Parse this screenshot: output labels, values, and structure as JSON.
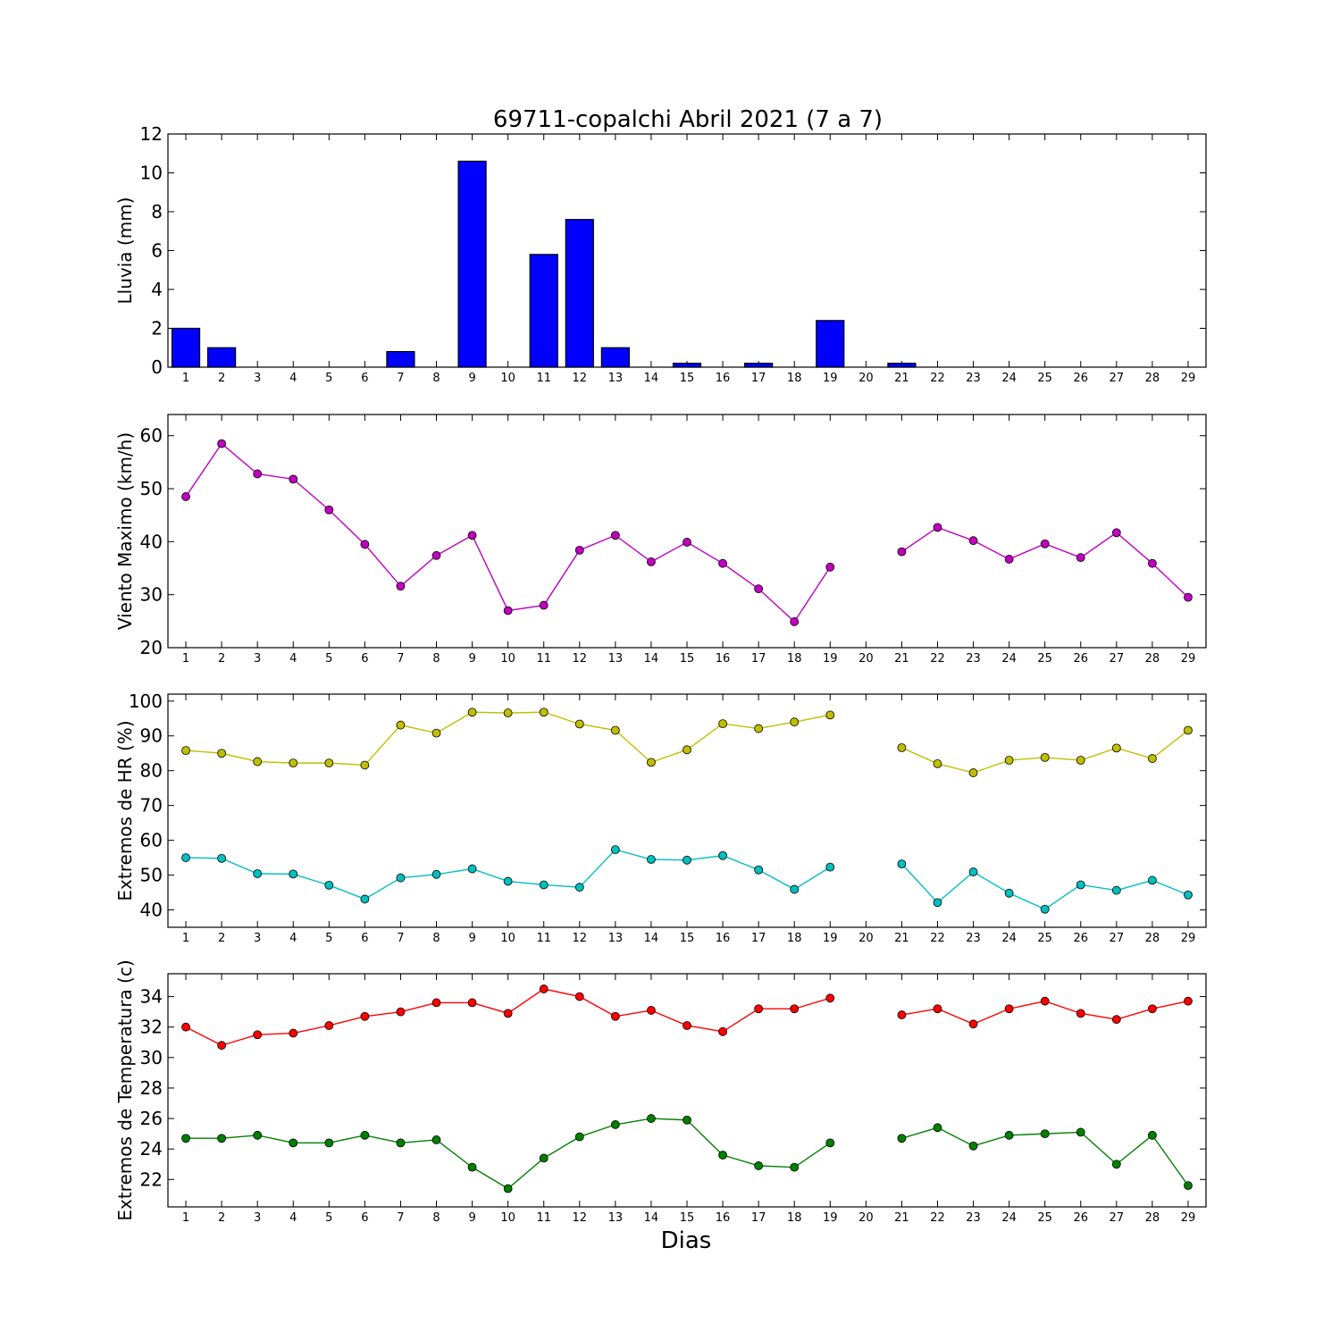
{
  "chart_data": {
    "title": "69711-copalchi Abril 2021  (7 a 7)",
    "xlabel": "Dias",
    "x": [
      1,
      2,
      3,
      4,
      5,
      6,
      7,
      8,
      9,
      10,
      11,
      12,
      13,
      14,
      15,
      16,
      17,
      18,
      19,
      20,
      21,
      22,
      23,
      24,
      25,
      26,
      27,
      28,
      29
    ],
    "panels": [
      {
        "type": "bar",
        "ylabel": "Lluvia (mm)",
        "ylim": [
          0,
          12
        ],
        "yticks": [
          0,
          2,
          4,
          6,
          8,
          10,
          12
        ],
        "colors": {
          "bar": "#0000ff"
        },
        "series": [
          {
            "values": [
              2.0,
              1.0,
              0,
              0,
              0,
              0,
              0.8,
              0,
              10.6,
              0,
              5.8,
              7.6,
              1.0,
              0,
              0.2,
              0,
              0.2,
              0,
              2.4,
              0,
              0.2,
              0,
              0,
              0,
              0,
              0,
              0,
              0,
              0
            ]
          }
        ]
      },
      {
        "type": "line",
        "ylabel": "Viento Maximo (km/h)",
        "ylim": [
          20,
          64
        ],
        "yticks": [
          20,
          30,
          40,
          50,
          60
        ],
        "series": [
          {
            "color": "#bf00bf",
            "values": [
              48.5,
              58.5,
              52.8,
              51.8,
              46.0,
              39.5,
              31.6,
              37.4,
              41.2,
              27.0,
              28.0,
              38.4,
              41.2,
              36.2,
              39.9,
              35.9,
              31.1,
              24.9,
              35.2,
              null,
              38.1,
              42.7,
              40.2,
              36.7,
              39.6,
              37.0,
              41.7,
              35.9,
              29.5
            ]
          }
        ]
      },
      {
        "type": "line",
        "ylabel": "Extremos de HR (%)",
        "ylim": [
          35,
          102
        ],
        "yticks": [
          40,
          50,
          60,
          70,
          80,
          90,
          100
        ],
        "series": [
          {
            "color": "#bfbf00",
            "values": [
              85.8,
              85.0,
              82.6,
              82.2,
              82.2,
              81.6,
              93.1,
              90.8,
              96.8,
              96.6,
              96.8,
              93.4,
              91.6,
              82.4,
              86.0,
              93.5,
              92.1,
              94.0,
              96.0,
              null,
              86.6,
              82.0,
              79.4,
              83.0,
              83.8,
              83.0,
              86.5,
              83.5,
              91.6
            ]
          },
          {
            "color": "#00bfbf",
            "values": [
              55.0,
              54.8,
              50.4,
              50.3,
              47.1,
              43.1,
              49.2,
              50.2,
              51.8,
              48.2,
              47.2,
              46.5,
              57.3,
              54.5,
              54.3,
              55.6,
              51.5,
              45.9,
              52.3,
              null,
              53.2,
              42.1,
              50.9,
              44.8,
              40.2,
              47.2,
              45.6,
              48.5,
              44.3
            ]
          }
        ]
      },
      {
        "type": "line",
        "ylabel": "Extremos de Temperatura (c)",
        "ylim": [
          20.2,
          35.5
        ],
        "yticks": [
          22,
          24,
          26,
          28,
          30,
          32,
          34
        ],
        "series": [
          {
            "color": "#ff0000",
            "values": [
              32.0,
              30.8,
              31.5,
              31.6,
              32.1,
              32.7,
              33.0,
              33.6,
              33.6,
              32.9,
              34.5,
              34.0,
              32.7,
              33.1,
              32.1,
              31.7,
              33.2,
              33.2,
              33.9,
              null,
              32.8,
              33.2,
              32.2,
              33.2,
              33.7,
              32.9,
              32.5,
              33.2,
              33.7
            ]
          },
          {
            "color": "#008000",
            "values": [
              24.7,
              24.7,
              24.9,
              24.4,
              24.4,
              24.9,
              24.4,
              24.6,
              22.8,
              21.4,
              23.4,
              24.8,
              25.6,
              26.0,
              25.9,
              23.6,
              22.9,
              22.8,
              24.4,
              null,
              24.7,
              25.4,
              24.2,
              24.9,
              25.0,
              25.1,
              23.0,
              24.9,
              21.6
            ]
          }
        ]
      }
    ]
  }
}
